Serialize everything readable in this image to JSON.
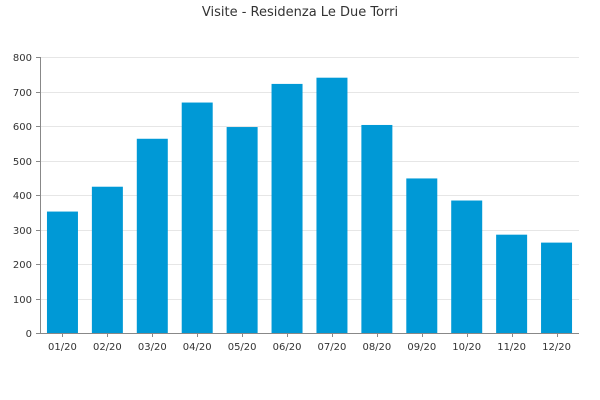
{
  "chart_data": {
    "type": "bar",
    "title": "Visite - Residenza Le Due Torri",
    "xlabel": "",
    "ylabel": "",
    "categories": [
      "01/20",
      "02/20",
      "03/20",
      "04/20",
      "05/20",
      "06/20",
      "07/20",
      "08/20",
      "09/20",
      "10/20",
      "11/20",
      "12/20"
    ],
    "values": [
      352,
      424,
      563,
      668,
      597,
      722,
      740,
      603,
      448,
      384,
      285,
      262
    ],
    "ylim": [
      0,
      800
    ],
    "yticks": [
      0,
      100,
      200,
      300,
      400,
      500,
      600,
      700,
      800
    ],
    "grid": true,
    "legend": "none",
    "bar_color": "#0099d6",
    "grid_color": "#e6e6e6",
    "axis_color": "#888888"
  }
}
